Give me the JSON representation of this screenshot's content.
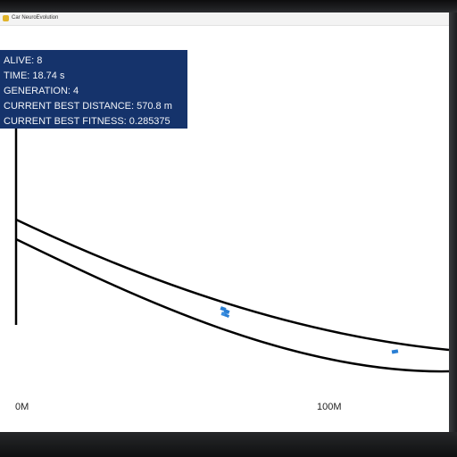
{
  "window": {
    "title": "Car NeuroEvolution"
  },
  "hud": {
    "alive": "ALIVE: 8",
    "time": "TIME: 18.74 s",
    "generation": "GENERATION: 4",
    "best_distance": "CURRENT BEST DISTANCE: 570.8 m",
    "best_fitness": "CURRENT BEST FITNESS: 0.285375"
  },
  "ruler": {
    "start_label": "0M",
    "mid_label": "100M"
  },
  "colors": {
    "hud_background": "#15336b",
    "car": "#2a7fd4",
    "track": "#000000"
  }
}
